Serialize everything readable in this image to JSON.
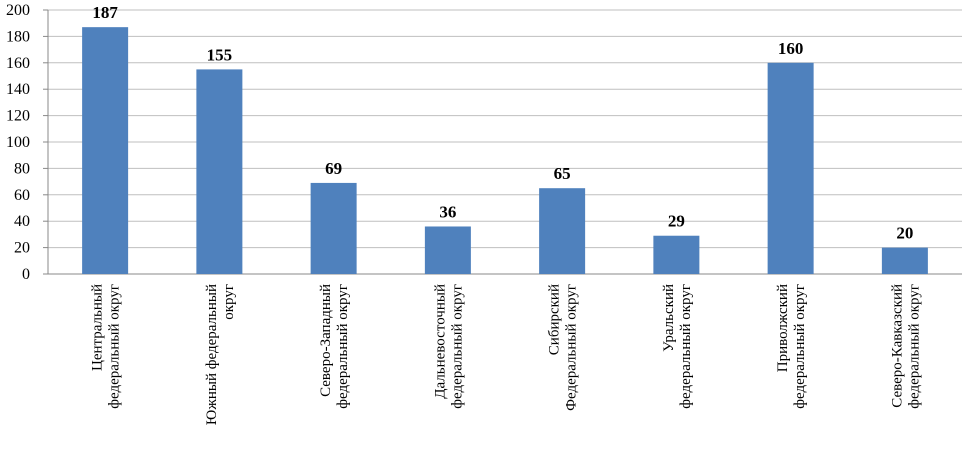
{
  "chart_data": {
    "type": "bar",
    "categories": [
      "Центральный федеральный округ",
      "Южный федеральный округ",
      "Северо-Западный федеральный округ",
      "Дальневосточный федеральный округ",
      "Сибирский Федеральный округ",
      "Уральский федеральный округ",
      "Приволжский федеральный округ",
      "Северо-Кавказский федеральный округ"
    ],
    "values": [
      187,
      155,
      69,
      36,
      65,
      29,
      160,
      20
    ],
    "color": "#4f81bd",
    "ylim": [
      0,
      200
    ],
    "yticks": [
      0,
      20,
      40,
      60,
      80,
      100,
      120,
      140,
      160,
      180,
      200
    ],
    "grid": true
  }
}
